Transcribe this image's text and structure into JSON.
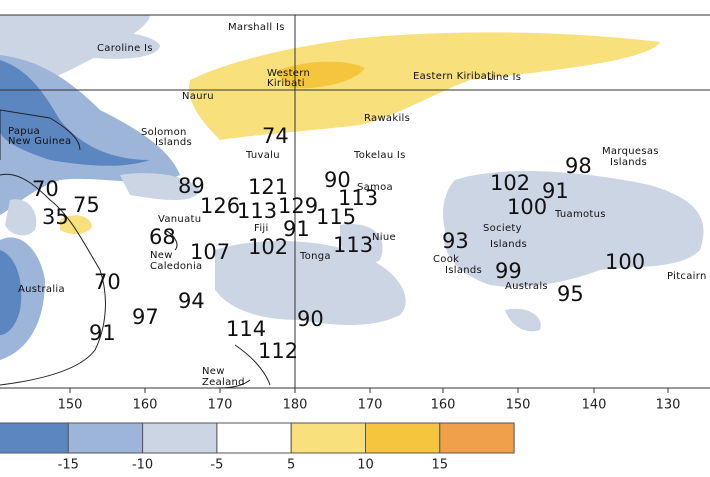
{
  "places": [
    {
      "label": "Marshall Is"
    },
    {
      "label": "Caroline Is"
    },
    {
      "label": "Western"
    },
    {
      "label": "Kiribati"
    },
    {
      "label": "Eastern Kiribati"
    },
    {
      "label": "Line Is"
    },
    {
      "label": "Nauru"
    },
    {
      "label": "Rawakils"
    },
    {
      "label": "Papua"
    },
    {
      "label": "New Guinea"
    },
    {
      "label": "Solomon"
    },
    {
      "label": "Islands"
    },
    {
      "label": "Tuvalu"
    },
    {
      "label": "Tokelau Is"
    },
    {
      "label": "Marquesas"
    },
    {
      "label": "Islands"
    },
    {
      "label": "Samoa"
    },
    {
      "label": "Vanuatu"
    },
    {
      "label": "Fiji"
    },
    {
      "label": "Niue"
    },
    {
      "label": "Tonga"
    },
    {
      "label": "New"
    },
    {
      "label": "Caledonia"
    },
    {
      "label": "Cook"
    },
    {
      "label": "Islands"
    },
    {
      "label": "Society"
    },
    {
      "label": "Islands"
    },
    {
      "label": "Tuamotus"
    },
    {
      "label": "Australs"
    },
    {
      "label": "Pitcairn"
    },
    {
      "label": "Australia"
    },
    {
      "label": "New"
    },
    {
      "label": "Zealand"
    }
  ],
  "anomalies": [
    74,
    98,
    70,
    89,
    121,
    90,
    102,
    91,
    35,
    75,
    126,
    113,
    129,
    115,
    113,
    100,
    91,
    68,
    107,
    102,
    113,
    93,
    100,
    99,
    95,
    70,
    94,
    97,
    91,
    90,
    114,
    112
  ],
  "longitudes": [
    150,
    160,
    170,
    180,
    170,
    160,
    150,
    140,
    130
  ],
  "legend": {
    "colors": [
      "#5b86c0",
      "#9db5d9",
      "#ccd5e4",
      "#ffffff",
      "#f8e07c",
      "#f6c53e",
      "#f0a04a"
    ],
    "labels": [
      -15,
      -10,
      -5,
      5,
      10,
      15
    ]
  }
}
